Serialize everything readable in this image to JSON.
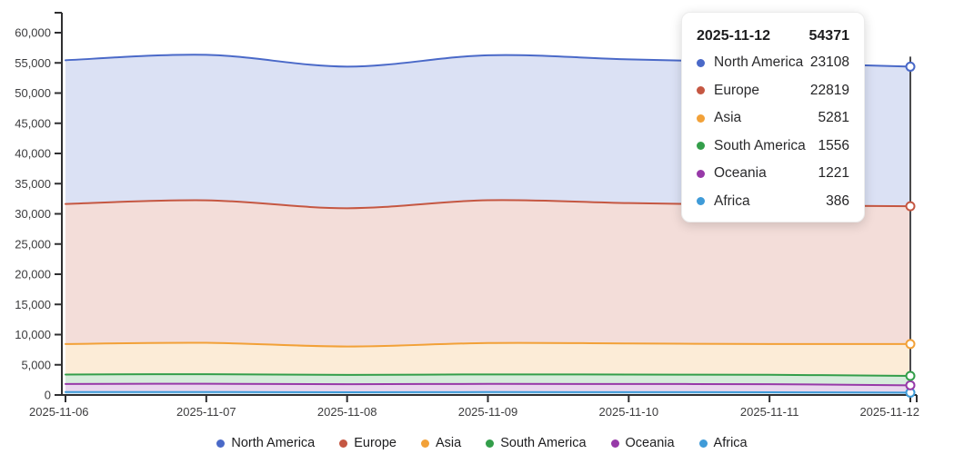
{
  "chart_data": {
    "type": "area",
    "stacked": true,
    "title": "",
    "xlabel": "",
    "ylabel": "",
    "x": [
      "2025-11-06",
      "2025-11-07",
      "2025-11-08",
      "2025-11-09",
      "2025-11-10",
      "2025-11-11",
      "2025-11-12"
    ],
    "series": [
      {
        "name": "North America",
        "color": "#4a69c8",
        "values": [
          23800,
          24100,
          23450,
          24000,
          23800,
          23600,
          23108
        ]
      },
      {
        "name": "Europe",
        "color": "#c55742",
        "values": [
          23200,
          23600,
          22900,
          23650,
          23250,
          23000,
          22819
        ]
      },
      {
        "name": "Asia",
        "color": "#f2a138",
        "values": [
          5050,
          5200,
          4700,
          5200,
          5150,
          5100,
          5281
        ]
      },
      {
        "name": "South America",
        "color": "#339e4a",
        "values": [
          1560,
          1580,
          1540,
          1570,
          1560,
          1550,
          1556
        ]
      },
      {
        "name": "Oceania",
        "color": "#9739a8",
        "values": [
          1350,
          1370,
          1330,
          1360,
          1350,
          1340,
          1221
        ]
      },
      {
        "name": "Africa",
        "color": "#3f9bd8",
        "values": [
          480,
          490,
          460,
          480,
          470,
          450,
          386
        ]
      }
    ],
    "stack_order_bottom_to_top": [
      "Africa",
      "Oceania",
      "South America",
      "Asia",
      "Europe",
      "North America"
    ],
    "ylim": [
      0,
      60000
    ],
    "ytick_step": 5000,
    "y_tick_labels": [
      "0",
      "5,000",
      "10,000",
      "15,000",
      "20,000",
      "25,000",
      "30,000",
      "35,000",
      "40,000",
      "45,000",
      "50,000",
      "55,000",
      "60,000"
    ],
    "grid": false,
    "legend_position": "bottom",
    "hover_x": "2025-11-12"
  },
  "tooltip": {
    "date": "2025-11-12",
    "total": "54371",
    "rows": [
      {
        "label": "North America",
        "value": "23108"
      },
      {
        "label": "Europe",
        "value": "22819"
      },
      {
        "label": "Asia",
        "value": "5281"
      },
      {
        "label": "South America",
        "value": "1556"
      },
      {
        "label": "Oceania",
        "value": "1221"
      },
      {
        "label": "Africa",
        "value": "386"
      }
    ]
  },
  "colors": {
    "axis": "#2f2f31",
    "tick_label": "#3c3c3e",
    "hover_line": "#4a4a4c",
    "area_fill_alpha": 0.2
  }
}
